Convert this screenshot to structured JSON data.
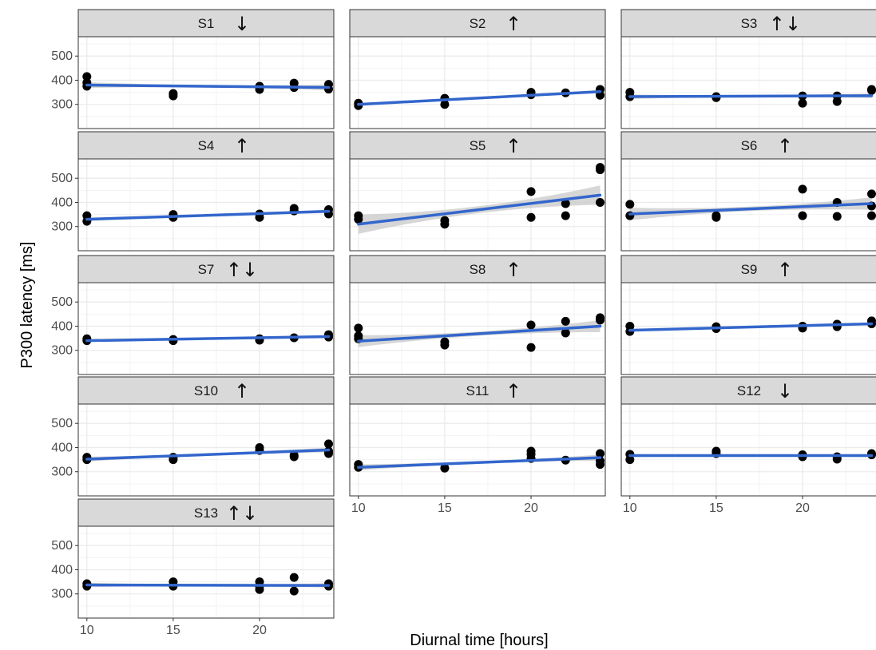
{
  "chart_data": {
    "type": "scatter",
    "xlabel": "Diurnal time [hours]",
    "ylabel": "P300 latency [ms]",
    "xlim": [
      9.5,
      24.3
    ],
    "ylim": [
      200,
      580
    ],
    "x_ticks": [
      10,
      15,
      20
    ],
    "y_ticks": [
      300,
      400,
      500
    ],
    "grid": true,
    "trend": "linear fit with confidence band",
    "colors": {
      "points": "#000000",
      "fit_line": "#3366cc",
      "band": "#c8c8c8",
      "strip": "#d9d9d9",
      "grid": "#ebebeb"
    },
    "panels": [
      {
        "title": "S1",
        "trend_arrow": "↓",
        "points": [
          [
            10,
            415
          ],
          [
            10,
            390
          ],
          [
            10,
            375
          ],
          [
            15,
            345
          ],
          [
            15,
            335
          ],
          [
            20,
            375
          ],
          [
            20,
            362
          ],
          [
            22,
            388
          ],
          [
            22,
            370
          ],
          [
            24,
            383
          ],
          [
            24,
            363
          ]
        ],
        "fit": [
          [
            10,
            380
          ],
          [
            24,
            370
          ]
        ]
      },
      {
        "title": "S2",
        "trend_arrow": "↑",
        "points": [
          [
            10,
            305
          ],
          [
            10,
            295
          ],
          [
            15,
            325
          ],
          [
            15,
            300
          ],
          [
            20,
            350
          ],
          [
            20,
            340
          ],
          [
            22,
            348
          ],
          [
            24,
            362
          ],
          [
            24,
            338
          ]
        ],
        "fit": [
          [
            10,
            300
          ],
          [
            24,
            353
          ]
        ]
      },
      {
        "title": "S3",
        "trend_arrow": "↑↓",
        "points": [
          [
            10,
            350
          ],
          [
            10,
            332
          ],
          [
            15,
            332
          ],
          [
            15,
            328
          ],
          [
            20,
            335
          ],
          [
            20,
            305
          ],
          [
            22,
            335
          ],
          [
            22,
            312
          ],
          [
            24,
            362
          ],
          [
            24,
            358
          ]
        ],
        "fit": [
          [
            10,
            332
          ],
          [
            24,
            336
          ]
        ]
      },
      {
        "title": "S4",
        "trend_arrow": "↑",
        "points": [
          [
            10,
            345
          ],
          [
            10,
            322
          ],
          [
            15,
            350
          ],
          [
            15,
            338
          ],
          [
            20,
            352
          ],
          [
            20,
            338
          ],
          [
            22,
            375
          ],
          [
            22,
            365
          ],
          [
            24,
            370
          ],
          [
            24,
            352
          ]
        ],
        "fit": [
          [
            10,
            330
          ],
          [
            24,
            363
          ]
        ]
      },
      {
        "title": "S5",
        "trend_arrow": "↑",
        "points": [
          [
            10,
            345
          ],
          [
            10,
            330
          ],
          [
            15,
            325
          ],
          [
            15,
            310
          ],
          [
            20,
            445
          ],
          [
            20,
            338
          ],
          [
            22,
            395
          ],
          [
            22,
            345
          ],
          [
            24,
            545
          ],
          [
            24,
            535
          ],
          [
            24,
            400
          ]
        ],
        "fit": [
          [
            10,
            310
          ],
          [
            24,
            430
          ]
        ]
      },
      {
        "title": "S6",
        "trend_arrow": "↑",
        "points": [
          [
            10,
            392
          ],
          [
            10,
            345
          ],
          [
            15,
            345
          ],
          [
            15,
            338
          ],
          [
            20,
            455
          ],
          [
            20,
            345
          ],
          [
            22,
            400
          ],
          [
            22,
            342
          ],
          [
            24,
            435
          ],
          [
            24,
            385
          ],
          [
            24,
            345
          ]
        ],
        "fit": [
          [
            10,
            352
          ],
          [
            24,
            395
          ]
        ]
      },
      {
        "title": "S7",
        "trend_arrow": "↑↓",
        "points": [
          [
            10,
            348
          ],
          [
            10,
            340
          ],
          [
            15,
            345
          ],
          [
            15,
            340
          ],
          [
            20,
            348
          ],
          [
            20,
            342
          ],
          [
            22,
            352
          ],
          [
            24,
            365
          ],
          [
            24,
            355
          ]
        ],
        "fit": [
          [
            10,
            340
          ],
          [
            24,
            357
          ]
        ]
      },
      {
        "title": "S8",
        "trend_arrow": "↑",
        "points": [
          [
            10,
            392
          ],
          [
            10,
            360
          ],
          [
            10,
            348
          ],
          [
            15,
            335
          ],
          [
            15,
            322
          ],
          [
            20,
            405
          ],
          [
            20,
            312
          ],
          [
            22,
            420
          ],
          [
            22,
            372
          ],
          [
            24,
            435
          ],
          [
            24,
            425
          ]
        ],
        "fit": [
          [
            10,
            338
          ],
          [
            24,
            400
          ]
        ]
      },
      {
        "title": "S9",
        "trend_arrow": "↑",
        "points": [
          [
            10,
            400
          ],
          [
            10,
            378
          ],
          [
            15,
            398
          ],
          [
            15,
            390
          ],
          [
            20,
            400
          ],
          [
            20,
            392
          ],
          [
            22,
            408
          ],
          [
            22,
            398
          ],
          [
            24,
            422
          ],
          [
            24,
            410
          ]
        ],
        "fit": [
          [
            10,
            383
          ],
          [
            24,
            410
          ]
        ]
      },
      {
        "title": "S10",
        "trend_arrow": "↑",
        "points": [
          [
            10,
            360
          ],
          [
            10,
            350
          ],
          [
            15,
            360
          ],
          [
            15,
            350
          ],
          [
            20,
            400
          ],
          [
            20,
            388
          ],
          [
            22,
            368
          ],
          [
            22,
            362
          ],
          [
            24,
            415
          ],
          [
            24,
            385
          ],
          [
            24,
            375
          ]
        ],
        "fit": [
          [
            10,
            352
          ],
          [
            24,
            390
          ]
        ]
      },
      {
        "title": "S11",
        "trend_arrow": "↑",
        "points": [
          [
            10,
            330
          ],
          [
            10,
            318
          ],
          [
            15,
            315
          ],
          [
            20,
            385
          ],
          [
            20,
            372
          ],
          [
            20,
            355
          ],
          [
            22,
            348
          ],
          [
            24,
            375
          ],
          [
            24,
            345
          ],
          [
            24,
            330
          ]
        ],
        "fit": [
          [
            10,
            318
          ],
          [
            24,
            358
          ]
        ]
      },
      {
        "title": "S12",
        "trend_arrow": "↓",
        "points": [
          [
            10,
            372
          ],
          [
            10,
            350
          ],
          [
            15,
            385
          ],
          [
            15,
            375
          ],
          [
            20,
            370
          ],
          [
            20,
            362
          ],
          [
            22,
            362
          ],
          [
            22,
            352
          ],
          [
            24,
            375
          ],
          [
            24,
            370
          ]
        ],
        "fit": [
          [
            10,
            367
          ],
          [
            24,
            367
          ]
        ]
      },
      {
        "title": "S13",
        "trend_arrow": "↑↓",
        "points": [
          [
            10,
            342
          ],
          [
            10,
            332
          ],
          [
            15,
            350
          ],
          [
            15,
            332
          ],
          [
            20,
            350
          ],
          [
            20,
            330
          ],
          [
            20,
            318
          ],
          [
            22,
            368
          ],
          [
            22,
            312
          ],
          [
            24,
            342
          ],
          [
            24,
            332
          ]
        ],
        "fit": [
          [
            10,
            337
          ],
          [
            24,
            335
          ]
        ]
      }
    ]
  }
}
